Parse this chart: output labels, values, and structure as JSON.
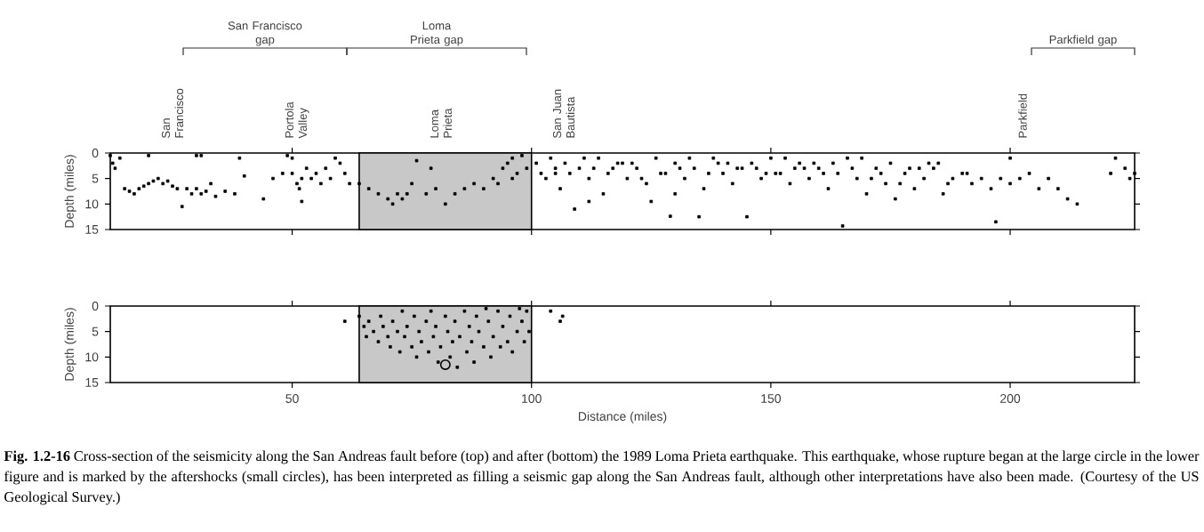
{
  "chart_data": [
    {
      "type": "scatter",
      "ylabel": "Depth (miles)",
      "xlim": [
        12,
        226
      ],
      "ylim": [
        15,
        0
      ],
      "xticks": [
        50,
        100,
        150,
        200
      ],
      "yticks": [
        0,
        5,
        10,
        15
      ],
      "tick_labels": "y",
      "marker": "square",
      "bands": [
        {
          "axis": "x",
          "from": 64,
          "to": 100,
          "color": "#c8c8c8"
        }
      ],
      "annotations": [
        "San Francisco",
        "Portola Valley",
        "Loma Prieta",
        "San Juan Bautista",
        "Parkfield",
        "San Francisco gap",
        "Loma Prieta gap",
        "Parkfield gap"
      ],
      "series": [
        {
          "color": "#000000",
          "x": [
            12,
            12.5,
            13,
            14,
            15,
            16,
            17,
            18,
            19,
            20,
            21,
            22,
            23,
            24,
            25,
            26,
            27,
            28,
            29,
            30,
            31,
            32,
            33,
            34,
            36,
            38,
            39,
            40,
            30,
            31,
            20,
            44,
            46,
            49,
            50,
            51,
            51.5,
            52,
            53,
            54,
            55,
            56,
            57,
            58,
            59,
            60,
            61,
            62,
            52,
            48,
            50,
            64,
            66,
            68,
            70,
            71,
            72,
            73,
            74,
            75,
            76,
            78,
            79,
            80,
            82,
            84,
            86,
            88,
            90,
            92,
            93,
            94,
            95,
            96,
            97,
            98,
            99,
            96,
            101,
            102,
            103,
            104,
            105,
            106,
            107,
            108,
            109,
            110,
            112,
            114,
            116,
            118,
            120,
            122,
            124,
            126,
            128,
            130,
            132,
            134,
            136,
            138,
            140,
            142,
            144,
            146,
            148,
            150,
            152,
            154,
            156,
            158,
            160,
            162,
            164,
            166,
            168,
            170,
            172,
            174,
            176,
            178,
            180,
            182,
            184,
            186,
            188,
            190,
            192,
            194,
            196,
            198,
            200,
            202,
            204,
            206,
            208,
            210,
            212,
            214,
            200,
            222,
            224,
            225,
            226,
            221,
            115,
            125,
            130,
            112,
            129,
            135,
            145,
            165,
            197,
            111,
            117,
            121,
            127,
            133,
            139,
            143,
            149,
            153,
            157,
            163,
            169,
            175,
            181,
            185,
            105,
            113,
            119,
            123,
            131,
            137,
            141,
            147,
            151,
            155,
            159,
            161,
            167,
            171,
            173,
            177,
            179,
            183,
            187,
            191
          ],
          "values": [
            0.5,
            2,
            3,
            1,
            7,
            7.5,
            8,
            7,
            6.5,
            6,
            5.5,
            5,
            6,
            5.5,
            6.5,
            7,
            10.5,
            7,
            8,
            7,
            8,
            7.5,
            6,
            8.5,
            7.5,
            8,
            1,
            4.5,
            0.5,
            0.5,
            0.5,
            9,
            5,
            0.5,
            4,
            6,
            7,
            5,
            3,
            5,
            4,
            6,
            3,
            5,
            1,
            2,
            4,
            6,
            9.5,
            4,
            1,
            6,
            7,
            8,
            9,
            10,
            8,
            9,
            8,
            6,
            1.5,
            8,
            3,
            7,
            10,
            8,
            7,
            6,
            7,
            5,
            6,
            3,
            2,
            1,
            4,
            0.5,
            3,
            5,
            2,
            4,
            5,
            1,
            3,
            7,
            2,
            4,
            11,
            3,
            5,
            1,
            4,
            2,
            5,
            3,
            6,
            1,
            4,
            2,
            5,
            3,
            7,
            1,
            4,
            6,
            3,
            2,
            5,
            1,
            4,
            6,
            2,
            5,
            3,
            7,
            4,
            1,
            5,
            8,
            3,
            6,
            9,
            4,
            7,
            5,
            3,
            8,
            5,
            4,
            6,
            5,
            7,
            5,
            6,
            5,
            4,
            7,
            5,
            7,
            9,
            10,
            1,
            1,
            3,
            5,
            4,
            4,
            8,
            9.5,
            8,
            9.5,
            12.4,
            12.5,
            12.5,
            14.3,
            13.5,
            1,
            3,
            2,
            4,
            1,
            2,
            3,
            4,
            1,
            3,
            2,
            1,
            2,
            3,
            2,
            4,
            3,
            2,
            5,
            3,
            4,
            2,
            3,
            4,
            3,
            2,
            4,
            3,
            5,
            4,
            6,
            3,
            2,
            6,
            4
          ]
        }
      ]
    },
    {
      "type": "scatter",
      "xlabel": "Distance (miles)",
      "ylabel": "Depth (miles)",
      "xlim": [
        12,
        226
      ],
      "ylim": [
        15,
        0
      ],
      "xticks": [
        50,
        100,
        150,
        200
      ],
      "yticks": [
        0,
        5,
        10,
        15
      ],
      "bands": [
        {
          "axis": "x",
          "from": 64,
          "to": 100,
          "color": "#c8c8c8"
        }
      ],
      "annotations": [
        "**Fig. 1.2-16** Cross-section of the seismicity along the San Andreas fault before (top) and after (bottom) the 1989 Loma Prieta earthquake. This earthquake, whose rupture began at the large circle in the lower figure and is marked by the aftershocks (small circles), has been interpreted as filling a seismic gap along the San Andreas fault, although other interpretations have also been made. (Courtesy of the US Geological Survey.)"
      ],
      "series": [
        {
          "color": "#000000",
          "marker": "square",
          "x": [
            64,
            65,
            65.5,
            66,
            67,
            68,
            68.5,
            69,
            70,
            70.5,
            71,
            72,
            72.5,
            73,
            73.5,
            74,
            75,
            75.5,
            76,
            76.5,
            77,
            78,
            78.5,
            79,
            79.5,
            80,
            80.5,
            81,
            82,
            82.5,
            83,
            83.5,
            84,
            84.5,
            85,
            86,
            86.5,
            87,
            87.5,
            88,
            88.5,
            89,
            90,
            90.5,
            91,
            91.5,
            92,
            93,
            93.5,
            94,
            95,
            95.5,
            96,
            97,
            97.5,
            98,
            98.5,
            99,
            99.5,
            61,
            104,
            106,
            106.5
          ],
          "values": [
            2,
            4,
            6,
            3,
            5,
            7,
            2,
            4,
            6,
            8,
            3,
            5,
            9,
            1,
            6,
            4,
            8,
            2,
            10,
            5,
            7,
            3,
            9,
            1,
            6,
            4,
            11,
            8,
            2,
            5,
            10,
            7,
            3,
            12,
            6,
            1,
            9,
            4,
            7,
            11,
            2,
            5,
            8,
            0.5,
            3,
            10,
            6,
            1,
            8,
            4,
            7,
            2,
            9,
            5,
            0.5,
            3,
            7,
            1,
            5,
            3,
            1,
            3,
            2
          ]
        },
        {
          "color": "#000000",
          "marker": "circle",
          "x": [
            82
          ],
          "values": [
            11.5
          ]
        }
      ]
    }
  ]
}
